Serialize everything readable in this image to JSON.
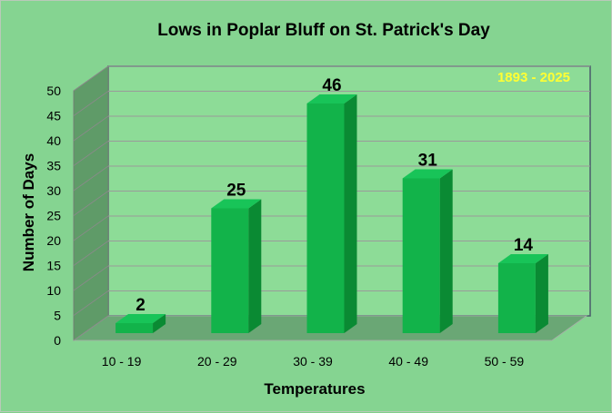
{
  "chart_data": {
    "type": "bar",
    "title": "Lows in Poplar Bluff on St. Patrick's Day",
    "annotation": "1893 - 2025",
    "xlabel": "Temperatures",
    "ylabel": "Number of Days",
    "categories": [
      "10 - 19",
      "20 - 29",
      "30 - 39",
      "40 - 49",
      "50 - 59"
    ],
    "values": [
      2,
      25,
      46,
      31,
      14
    ],
    "ylim": [
      0,
      50
    ],
    "yticks": [
      0,
      5,
      10,
      15,
      20,
      25,
      30,
      35,
      40,
      45,
      50
    ],
    "grid": true,
    "style": "3d-column",
    "colors": {
      "background": "#85d491",
      "plot_wall": "#8ddc97",
      "side_wall": "#5f9b68",
      "floor": "#6aa775",
      "bar_front": "#12b34a",
      "bar_side": "#0a8a33",
      "bar_top": "#18c458",
      "annotation": "#ffff33"
    }
  }
}
